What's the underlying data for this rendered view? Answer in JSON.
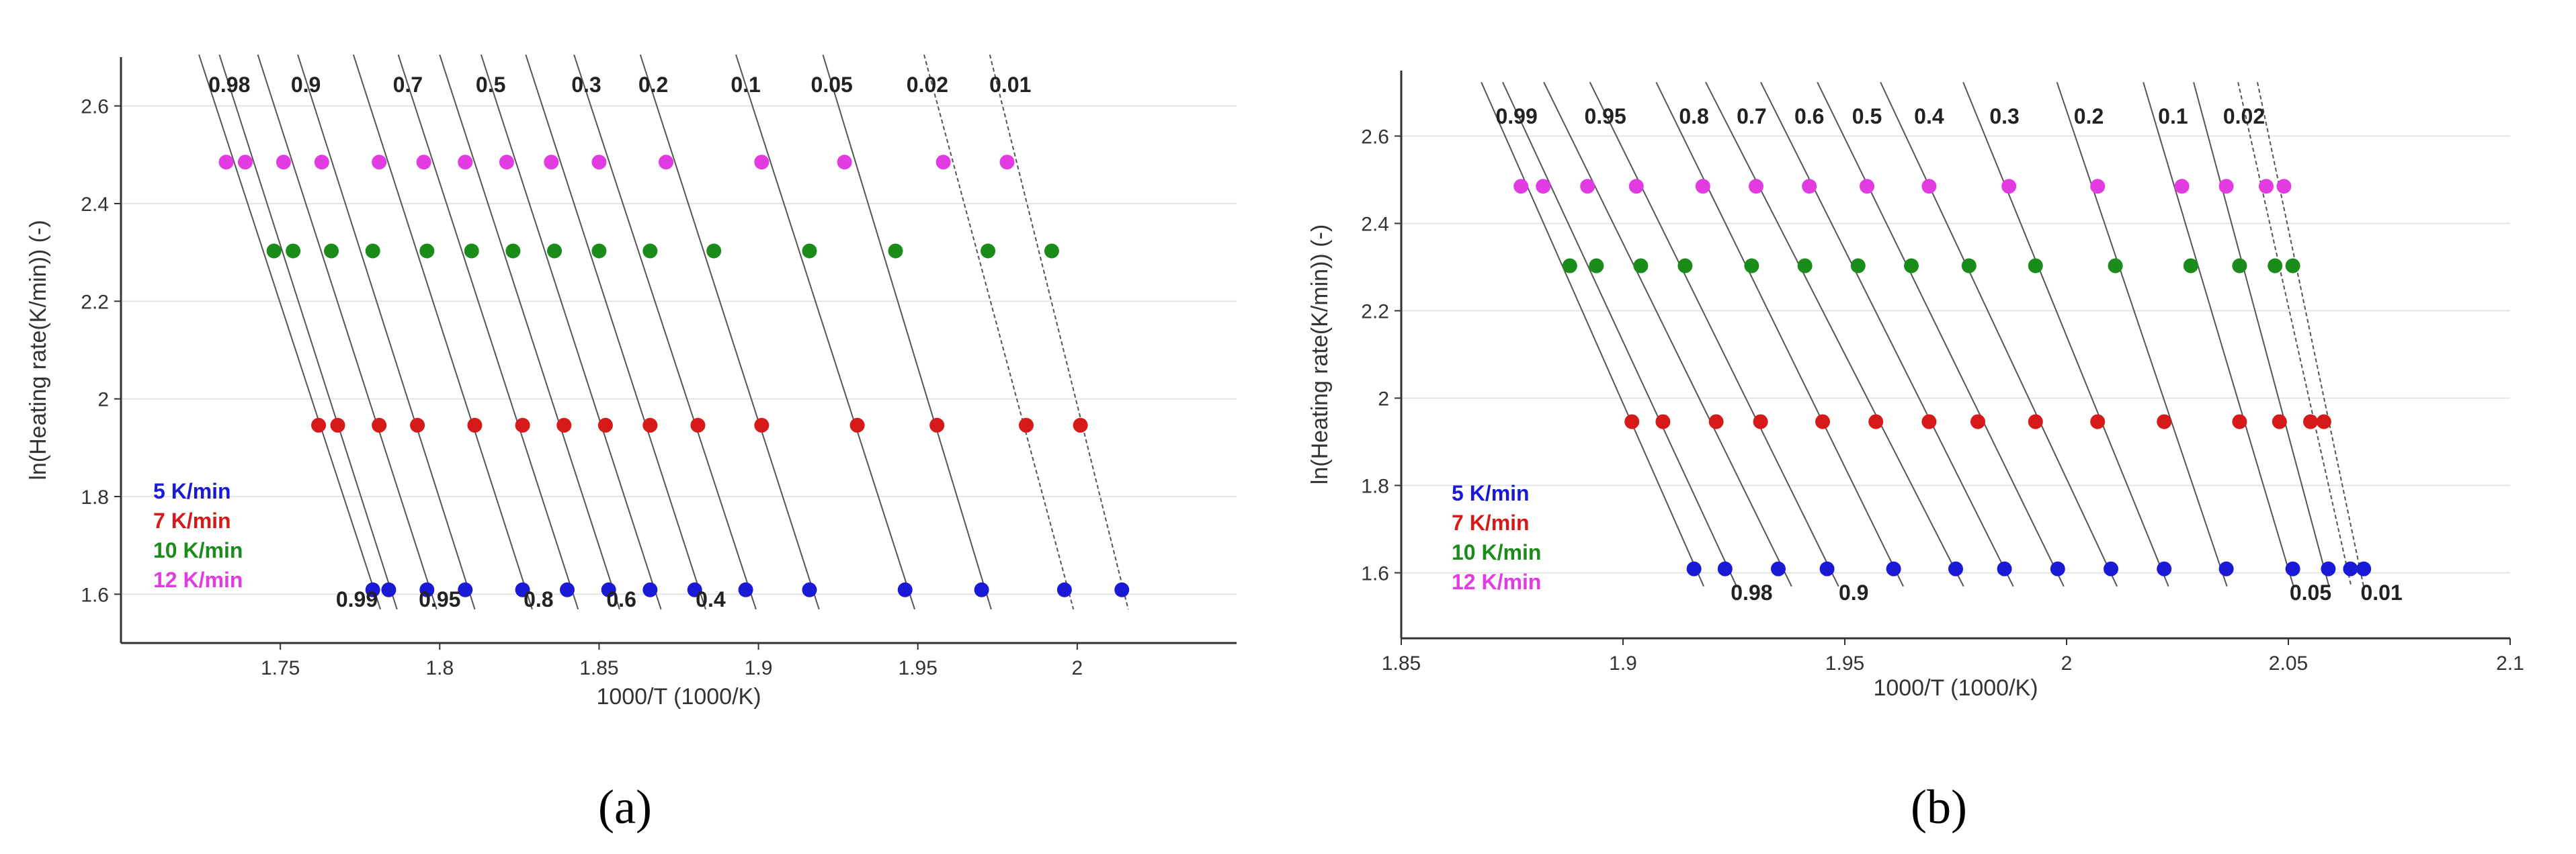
{
  "chart_data": [
    {
      "type": "scatter",
      "panel": "a",
      "caption": "(a)",
      "xlabel": "1000/T (1000/K)",
      "ylabel": "ln(Heating rate(K/min)) (-)",
      "xlim": [
        1.7,
        2.05
      ],
      "ylim": [
        1.5,
        2.7
      ],
      "xticks": [
        1.75,
        1.8,
        1.85,
        1.9,
        1.95,
        2
      ],
      "xtick_labels": [
        "1.75",
        "1.8",
        "1.85",
        "1.9",
        "1.95",
        "2"
      ],
      "yticks": [
        1.6,
        1.8,
        2,
        2.2,
        2.4,
        2.6
      ],
      "ytick_labels": [
        "1.6",
        "1.8",
        "2",
        "2.2",
        "2.4",
        "2.6"
      ],
      "grid": true,
      "series": [
        {
          "name": "5 K/min",
          "color": "#1a1ad6",
          "y": 1.609,
          "x": [
            1.779,
            1.784,
            1.796,
            1.808,
            1.826,
            1.84,
            1.853,
            1.866,
            1.88,
            1.896,
            1.916,
            1.946,
            1.97,
            1.996,
            2.014
          ]
        },
        {
          "name": "7 K/min",
          "color": "#d61a1a",
          "y": 1.946,
          "x": [
            1.762,
            1.768,
            1.781,
            1.793,
            1.811,
            1.826,
            1.839,
            1.852,
            1.866,
            1.881,
            1.901,
            1.931,
            1.956,
            1.984,
            2.001
          ]
        },
        {
          "name": "10 K/min",
          "color": "#1a8c1a",
          "y": 2.303,
          "x": [
            1.748,
            1.754,
            1.766,
            1.779,
            1.796,
            1.81,
            1.823,
            1.836,
            1.85,
            1.866,
            1.886,
            1.916,
            1.943,
            1.972,
            1.992
          ]
        },
        {
          "name": "12 K/min",
          "color": "#e23be2",
          "y": 2.485,
          "x": [
            1.733,
            1.739,
            1.751,
            1.763,
            1.781,
            1.795,
            1.808,
            1.821,
            1.835,
            1.85,
            1.871,
            1.901,
            1.927,
            1.958,
            1.978
          ]
        }
      ],
      "top_labels": [
        {
          "text": "0.98",
          "x": 1.734
        },
        {
          "text": "0.9",
          "x": 1.758
        },
        {
          "text": "0.7",
          "x": 1.79
        },
        {
          "text": "0.5",
          "x": 1.816
        },
        {
          "text": "0.3",
          "x": 1.846
        },
        {
          "text": "0.2",
          "x": 1.867
        },
        {
          "text": "0.1",
          "x": 1.896
        },
        {
          "text": "0.05",
          "x": 1.923
        },
        {
          "text": "0.02",
          "x": 1.953
        },
        {
          "text": "0.01",
          "x": 1.979
        }
      ],
      "bottom_labels": [
        {
          "text": "0.99",
          "x": 1.774
        },
        {
          "text": "0.95",
          "x": 1.8
        },
        {
          "text": "0.8",
          "x": 1.831
        },
        {
          "text": "0.6",
          "x": 1.857
        },
        {
          "text": "0.4",
          "x": 1.885
        }
      ],
      "legend_position": "bottom-left"
    },
    {
      "type": "scatter",
      "panel": "b",
      "caption": "(b)",
      "xlabel": "1000/T (1000/K)",
      "ylabel": "ln(Heating rate(K/min)) (-)",
      "xlim": [
        1.85,
        2.1
      ],
      "ylim": [
        1.45,
        2.75
      ],
      "xticks": [
        1.85,
        1.9,
        1.95,
        2,
        2.05,
        2.1
      ],
      "xtick_labels": [
        "1.85",
        "1.9",
        "1.95",
        "2",
        "2.05",
        "2.1"
      ],
      "yticks": [
        1.6,
        1.8,
        2,
        2.2,
        2.4,
        2.6
      ],
      "ytick_labels": [
        "1.6",
        "1.8",
        "2",
        "2.2",
        "2.4",
        "2.6"
      ],
      "grid": true,
      "series": [
        {
          "name": "5 K/min",
          "color": "#1a1ad6",
          "y": 1.609,
          "x": [
            1.916,
            1.923,
            1.935,
            1.946,
            1.961,
            1.975,
            1.986,
            1.998,
            2.01,
            2.022,
            2.036,
            2.051,
            2.059,
            2.064,
            2.067
          ]
        },
        {
          "name": "7 K/min",
          "color": "#d61a1a",
          "y": 1.946,
          "x": [
            1.902,
            1.909,
            1.921,
            1.931,
            1.945,
            1.957,
            1.969,
            1.98,
            1.993,
            2.007,
            2.022,
            2.039,
            2.048,
            2.055,
            2.058
          ]
        },
        {
          "name": "10 K/min",
          "color": "#1a8c1a",
          "y": 2.303,
          "x": [
            1.888,
            1.894,
            1.904,
            1.914,
            1.929,
            1.941,
            1.953,
            1.965,
            1.978,
            1.993,
            2.011,
            2.028,
            2.039,
            2.047,
            2.051
          ]
        },
        {
          "name": "12 K/min",
          "color": "#e23be2",
          "y": 2.485,
          "x": [
            1.877,
            1.882,
            1.892,
            1.903,
            1.918,
            1.93,
            1.942,
            1.955,
            1.969,
            1.987,
            2.007,
            2.026,
            2.036,
            2.045,
            2.049
          ]
        }
      ],
      "top_labels": [
        {
          "text": "0.99",
          "x": 1.876
        },
        {
          "text": "0.95",
          "x": 1.896
        },
        {
          "text": "0.8",
          "x": 1.916
        },
        {
          "text": "0.7",
          "x": 1.929
        },
        {
          "text": "0.6",
          "x": 1.942
        },
        {
          "text": "0.5",
          "x": 1.955
        },
        {
          "text": "0.4",
          "x": 1.969
        },
        {
          "text": "0.3",
          "x": 1.986
        },
        {
          "text": "0.2",
          "x": 2.005
        },
        {
          "text": "0.1",
          "x": 2.024
        },
        {
          "text": "0.02",
          "x": 2.04
        }
      ],
      "bottom_labels": [
        {
          "text": "0.98",
          "x": 1.929
        },
        {
          "text": "0.9",
          "x": 1.952
        },
        {
          "text": "0.05",
          "x": 2.055
        },
        {
          "text": "0.01",
          "x": 2.071
        }
      ],
      "legend_position": "bottom-left"
    }
  ]
}
